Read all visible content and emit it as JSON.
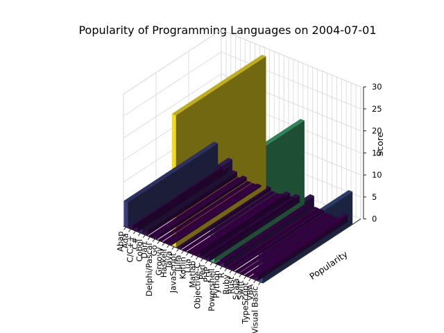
{
  "chart_data": {
    "type": "bar",
    "subtype": "3d-bar",
    "title": "Popularity of Programming Languages on 2004-07-01",
    "xlabel": "",
    "ylabel": "Popularity",
    "zlabel": "Score",
    "zlim": [
      0,
      30
    ],
    "z_ticks": [
      0,
      5,
      10,
      15,
      20,
      25,
      30
    ],
    "grid": true,
    "colormap": "viridis",
    "categories": [
      "Abap",
      "Ada",
      "C/C++",
      "C#",
      "Cobol",
      "Dart",
      "Delphi/Pascal",
      "Go",
      "Groovy",
      "Haskell",
      "Java",
      "JavaScript",
      "Julia",
      "Kotlin",
      "Lua",
      "Matlab",
      "Objective-C",
      "Perl",
      "PHP",
      "Powershell",
      "Python",
      "R",
      "Ruby",
      "Rust",
      "Scala",
      "Swift",
      "TypeScript",
      "VBA",
      "Visual Basic"
    ],
    "values": [
      5.8,
      0.9,
      1.2,
      3.5,
      1.1,
      0.0,
      0.8,
      0.0,
      0.0,
      0.3,
      30.0,
      0.7,
      0.0,
      0.0,
      0.3,
      1.2,
      0.6,
      1.5,
      19.0,
      0.1,
      2.8,
      0.4,
      0.4,
      0.0,
      0.1,
      0.0,
      0.0,
      1.7,
      7.3
    ]
  }
}
